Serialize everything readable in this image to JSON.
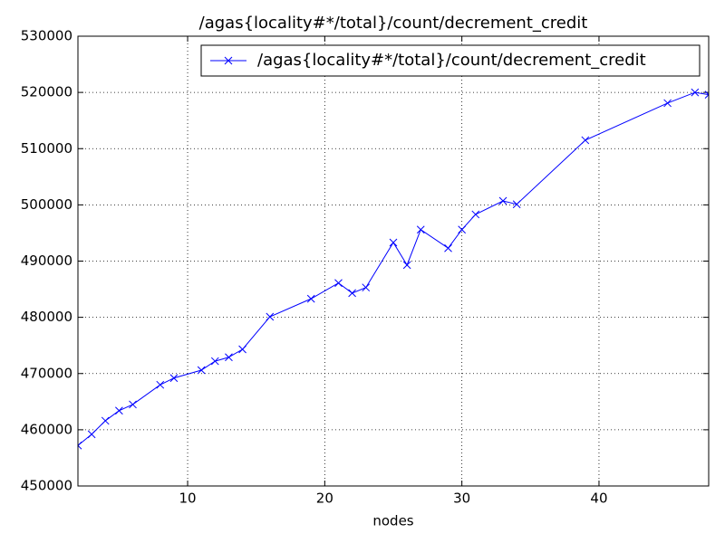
{
  "chart_data": {
    "type": "line",
    "title": "/agas{locality#*/total}/count/decrement_credit",
    "x_label": "nodes",
    "x": [
      2,
      3,
      4,
      5,
      6,
      8,
      9,
      11,
      12,
      13,
      14,
      16,
      19,
      21,
      22,
      23,
      25,
      26,
      27,
      29,
      30,
      31,
      33,
      34,
      39,
      45,
      47,
      48
    ],
    "series": [
      {
        "name": "/agas{locality#*/total}/count/decrement_credit",
        "color": "#0000ff",
        "values": [
          457200,
          459200,
          461600,
          463400,
          464500,
          468000,
          469200,
          470600,
          472200,
          472900,
          474300,
          480100,
          483300,
          486100,
          484300,
          485300,
          493300,
          489300,
          495600,
          492300,
          495600,
          498300,
          500700,
          500100,
          511500,
          518100,
          520000,
          519600
        ]
      }
    ],
    "xlim": [
      2,
      48
    ],
    "xticks": [
      10,
      20,
      30,
      40
    ],
    "ylim": [
      450000,
      530000
    ],
    "yticks": [
      450000,
      460000,
      470000,
      480000,
      490000,
      500000,
      510000,
      520000,
      530000
    ],
    "grid": true,
    "legend": "upper right"
  }
}
